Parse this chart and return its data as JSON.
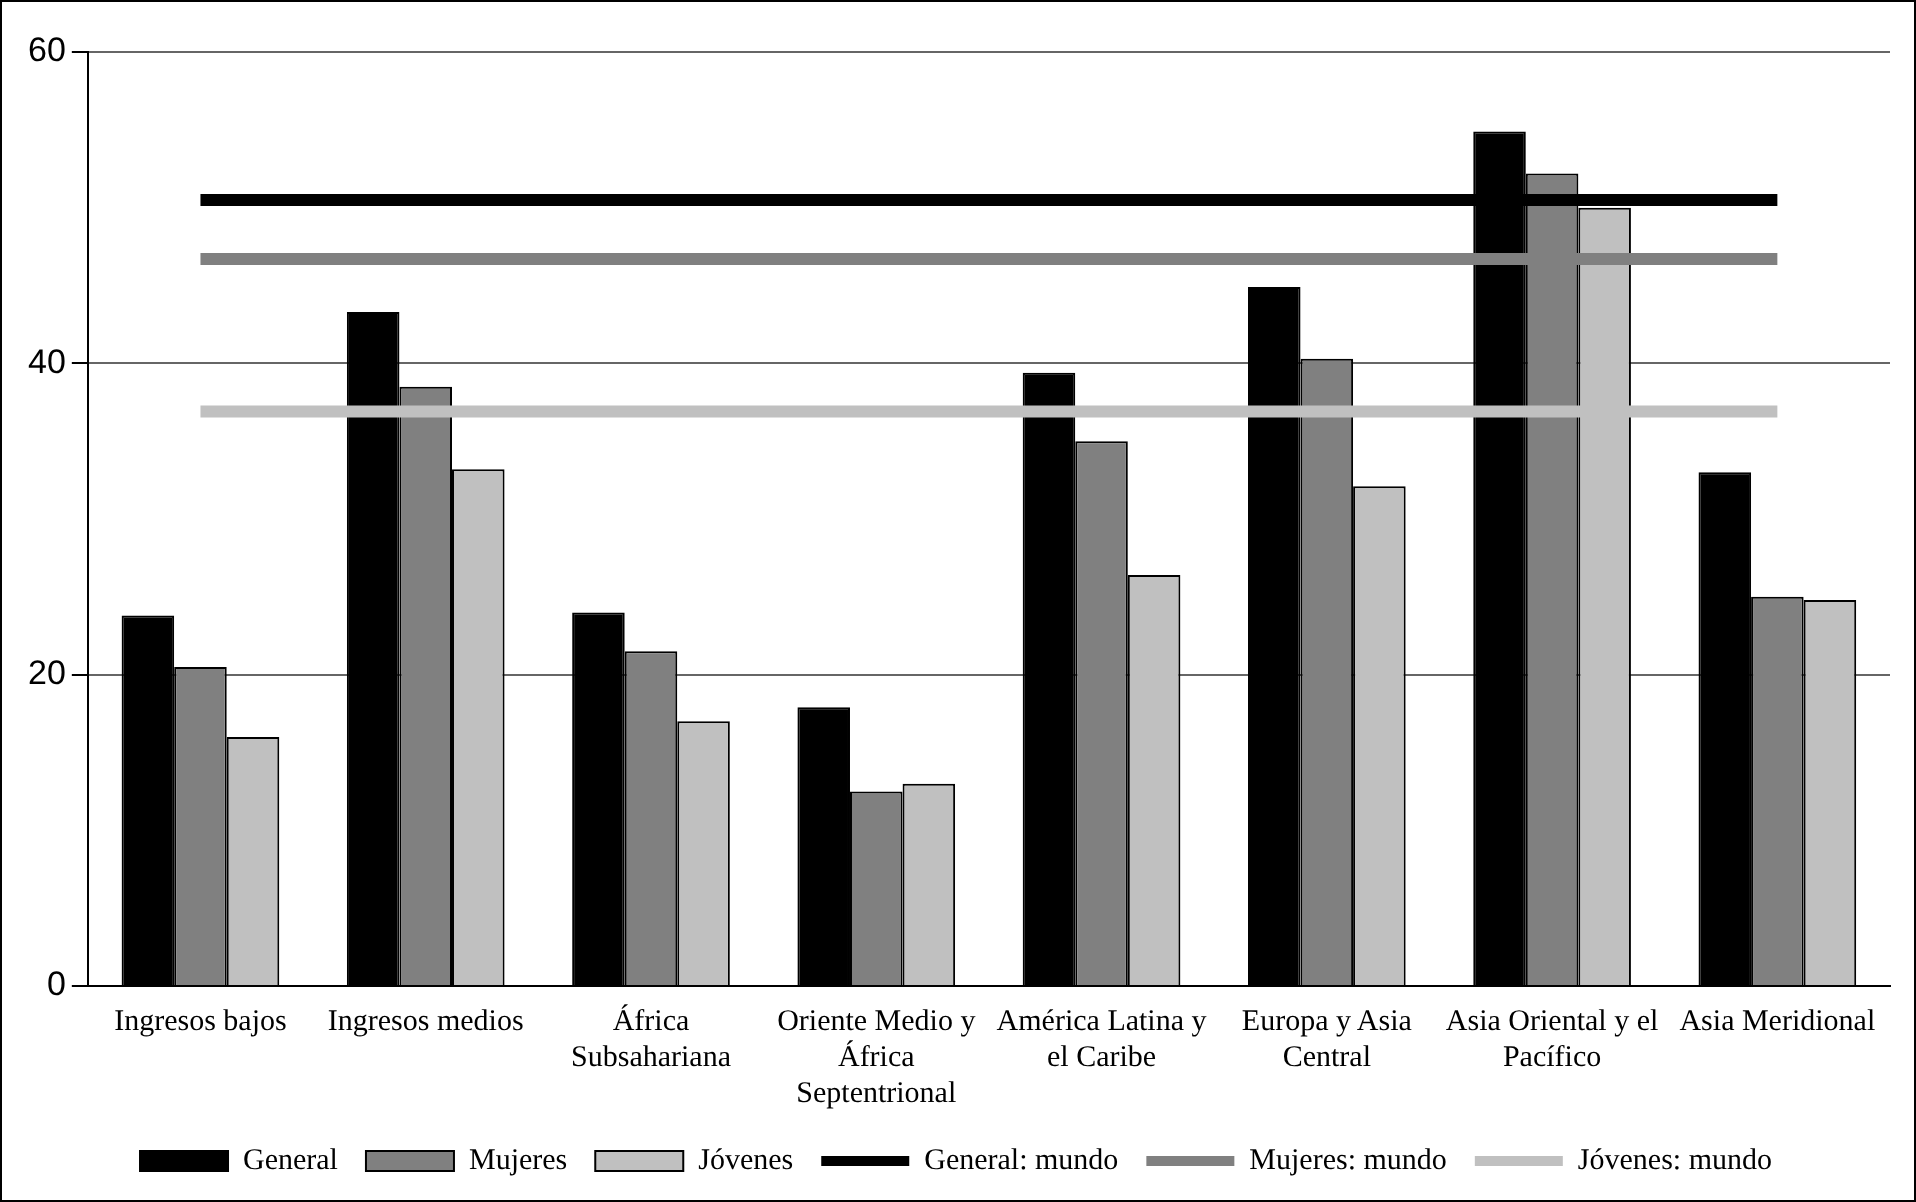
{
  "chart_data": {
    "type": "bar",
    "categories": [
      "Ingresos bajos",
      "Ingresos medios",
      "África Subsahariana",
      "Oriente Medio y África Septentrional",
      "América Latina y el Caribe",
      "Europa y Asia Central",
      "Asia Oriental y el Pacífico",
      "Asia Meridional"
    ],
    "series": [
      {
        "name": "General",
        "color": "#000000",
        "values": [
          23.8,
          43.3,
          24.0,
          17.9,
          39.4,
          44.9,
          54.9,
          33.0
        ]
      },
      {
        "name": "Mujeres",
        "color": "#808080",
        "values": [
          20.5,
          38.5,
          21.5,
          12.5,
          35.0,
          40.3,
          52.2,
          25.0
        ]
      },
      {
        "name": "Jóvenes",
        "color": "#c0c0c0",
        "values": [
          16.0,
          33.2,
          17.0,
          13.0,
          26.4,
          32.1,
          50.0,
          24.8
        ]
      },
      {
        "name": "General: mundo",
        "type": "line",
        "color": "#000000",
        "values": [
          50.5,
          50.5,
          50.5,
          50.5,
          50.5,
          50.5,
          50.5,
          50.5
        ]
      },
      {
        "name": "Mujeres: mundo",
        "type": "line",
        "color": "#808080",
        "values": [
          46.7,
          46.7,
          46.7,
          46.7,
          46.7,
          46.7,
          46.7,
          46.7
        ]
      },
      {
        "name": "Jóvenes: mundo",
        "type": "line",
        "color": "#c0c0c0",
        "values": [
          36.9,
          36.9,
          36.9,
          36.9,
          36.9,
          36.9,
          36.9,
          36.9
        ]
      }
    ],
    "ylim": [
      0,
      60
    ],
    "yticks": [
      0,
      20,
      40,
      60
    ],
    "grid": "y",
    "legend": "bottom",
    "marker": "none",
    "line_style": "solid"
  }
}
